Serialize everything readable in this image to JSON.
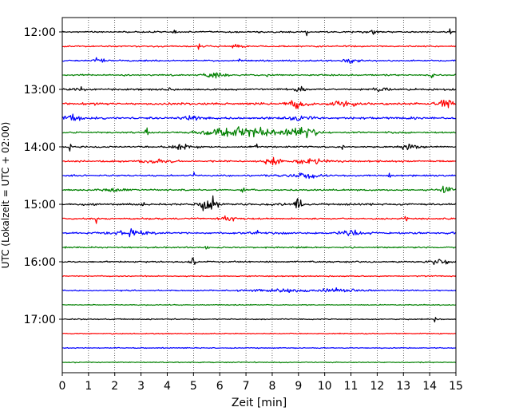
{
  "chart_data": {
    "type": "line",
    "subtype": "helicorder",
    "title": "",
    "xlabel": "Zeit  [min]",
    "ylabel": "UTC (Lokalzeit = UTC + 02:00)",
    "xlim": [
      0,
      15
    ],
    "x_ticks": [
      0,
      1,
      2,
      3,
      4,
      5,
      6,
      7,
      8,
      9,
      10,
      11,
      12,
      13,
      14,
      15
    ],
    "x_tick_labels": [
      "0",
      "1",
      "2",
      "3",
      "4",
      "5",
      "6",
      "7",
      "8",
      "9",
      "10",
      "11",
      "12",
      "13",
      "14",
      "15"
    ],
    "y_tick_labels": [
      "12:00",
      "13:00",
      "14:00",
      "15:00",
      "16:00",
      "17:00"
    ],
    "start_time": "12:00",
    "row_minutes": 15,
    "grid": "vertical dotted",
    "trace_colors": [
      "#000000",
      "#ff0000",
      "#0000ff",
      "#008000"
    ],
    "rows": [
      {
        "start": "12:00",
        "color": "#000000",
        "noise": 0.9,
        "events": [
          {
            "t": 1.3,
            "a": 2.0,
            "w": 0.05
          },
          {
            "t": 4.3,
            "a": 4.5,
            "w": 0.05
          },
          {
            "t": 9.3,
            "a": 5.5,
            "w": 0.06
          },
          {
            "t": 11.7,
            "a": 2.5,
            "w": 0.3
          },
          {
            "t": 14.8,
            "a": 5.0,
            "w": 0.05
          }
        ]
      },
      {
        "start": "12:15",
        "color": "#ff0000",
        "noise": 0.9,
        "events": [
          {
            "t": 5.2,
            "a": 4.5,
            "w": 0.05
          },
          {
            "t": 6.6,
            "a": 2.5,
            "w": 0.3
          },
          {
            "t": 10.8,
            "a": 3.5,
            "w": 0.05
          }
        ]
      },
      {
        "start": "12:30",
        "color": "#0000ff",
        "noise": 0.9,
        "events": [
          {
            "t": 1.4,
            "a": 4.0,
            "w": 0.2
          },
          {
            "t": 6.8,
            "a": 4.5,
            "w": 0.05
          },
          {
            "t": 11.0,
            "a": 2.5,
            "w": 0.3
          }
        ]
      },
      {
        "start": "12:45",
        "color": "#008000",
        "noise": 0.9,
        "events": [
          {
            "t": 2.4,
            "a": 3.0,
            "w": 0.05
          },
          {
            "t": 5.8,
            "a": 3.5,
            "w": 0.4
          },
          {
            "t": 7.8,
            "a": 4.0,
            "w": 0.05
          },
          {
            "t": 14.1,
            "a": 3.5,
            "w": 0.05
          }
        ]
      },
      {
        "start": "13:00",
        "color": "#000000",
        "noise": 1.1,
        "events": [
          {
            "t": 0.7,
            "a": 3.0,
            "w": 0.2
          },
          {
            "t": 4.1,
            "a": 5.0,
            "w": 0.05
          },
          {
            "t": 9.0,
            "a": 2.5,
            "w": 0.3
          },
          {
            "t": 12.2,
            "a": 2.5,
            "w": 0.3
          }
        ]
      },
      {
        "start": "13:15",
        "color": "#ff0000",
        "noise": 1.3,
        "events": [
          {
            "t": 1.2,
            "a": 4.0,
            "w": 0.05
          },
          {
            "t": 8.9,
            "a": 6.5,
            "w": 0.35
          },
          {
            "t": 10.8,
            "a": 3.5,
            "w": 0.5
          },
          {
            "t": 14.6,
            "a": 6.0,
            "w": 0.3
          }
        ]
      },
      {
        "start": "13:30",
        "color": "#0000ff",
        "noise": 1.4,
        "events": [
          {
            "t": 0.4,
            "a": 4.0,
            "w": 0.3
          },
          {
            "t": 5.0,
            "a": 3.0,
            "w": 0.4
          },
          {
            "t": 9.0,
            "a": 3.0,
            "w": 0.4
          }
        ]
      },
      {
        "start": "13:45",
        "color": "#008000",
        "noise": 1.0,
        "events": [
          {
            "t": 3.2,
            "a": 5.5,
            "w": 0.08
          },
          {
            "t": 6.8,
            "a": 7.5,
            "w": 1.3
          },
          {
            "t": 9.2,
            "a": 8.0,
            "w": 0.55
          }
        ]
      },
      {
        "start": "14:00",
        "color": "#000000",
        "noise": 1.0,
        "events": [
          {
            "t": 0.3,
            "a": 5.5,
            "w": 0.06
          },
          {
            "t": 4.5,
            "a": 2.5,
            "w": 0.5
          },
          {
            "t": 7.4,
            "a": 5.0,
            "w": 0.05
          },
          {
            "t": 10.7,
            "a": 5.0,
            "w": 0.05
          },
          {
            "t": 13.2,
            "a": 3.0,
            "w": 0.3
          }
        ]
      },
      {
        "start": "14:15",
        "color": "#ff0000",
        "noise": 1.1,
        "events": [
          {
            "t": 3.6,
            "a": 3.0,
            "w": 0.5
          },
          {
            "t": 8.0,
            "a": 8.5,
            "w": 0.25
          },
          {
            "t": 9.5,
            "a": 3.5,
            "w": 0.6
          },
          {
            "t": 12.0,
            "a": 4.0,
            "w": 0.05
          }
        ]
      },
      {
        "start": "14:30",
        "color": "#0000ff",
        "noise": 1.0,
        "events": [
          {
            "t": 5.0,
            "a": 5.0,
            "w": 0.06
          },
          {
            "t": 9.3,
            "a": 3.0,
            "w": 0.6
          },
          {
            "t": 12.5,
            "a": 4.5,
            "w": 0.06
          }
        ]
      },
      {
        "start": "14:45",
        "color": "#008000",
        "noise": 1.0,
        "events": [
          {
            "t": 2.0,
            "a": 2.5,
            "w": 0.5
          },
          {
            "t": 6.9,
            "a": 5.5,
            "w": 0.05
          },
          {
            "t": 14.6,
            "a": 4.0,
            "w": 0.25
          }
        ]
      },
      {
        "start": "15:00",
        "color": "#000000",
        "noise": 1.3,
        "events": [
          {
            "t": 5.6,
            "a": 10.0,
            "w": 0.35
          },
          {
            "t": 9.0,
            "a": 8.5,
            "w": 0.15
          },
          {
            "t": 3.1,
            "a": 3.0,
            "w": 0.05
          }
        ]
      },
      {
        "start": "15:15",
        "color": "#ff0000",
        "noise": 1.0,
        "events": [
          {
            "t": 1.3,
            "a": 5.0,
            "w": 0.05
          },
          {
            "t": 6.3,
            "a": 3.0,
            "w": 0.3
          },
          {
            "t": 13.1,
            "a": 5.0,
            "w": 0.05
          }
        ]
      },
      {
        "start": "15:30",
        "color": "#0000ff",
        "noise": 1.2,
        "events": [
          {
            "t": 2.6,
            "a": 3.5,
            "w": 0.6
          },
          {
            "t": 7.4,
            "a": 5.5,
            "w": 0.05
          },
          {
            "t": 11.0,
            "a": 3.0,
            "w": 0.4
          }
        ]
      },
      {
        "start": "15:45",
        "color": "#008000",
        "noise": 0.9,
        "events": [
          {
            "t": 5.5,
            "a": 6.0,
            "w": 0.05
          }
        ]
      },
      {
        "start": "16:00",
        "color": "#000000",
        "noise": 1.0,
        "events": [
          {
            "t": 5.0,
            "a": 5.0,
            "w": 0.12
          },
          {
            "t": 14.4,
            "a": 3.5,
            "w": 0.4
          }
        ]
      },
      {
        "start": "16:15",
        "color": "#ff0000",
        "noise": 0.7,
        "events": []
      },
      {
        "start": "16:30",
        "color": "#0000ff",
        "noise": 0.8,
        "events": [
          {
            "t": 8.3,
            "a": 2.5,
            "w": 1.0
          },
          {
            "t": 10.5,
            "a": 2.0,
            "w": 0.8
          }
        ]
      },
      {
        "start": "16:45",
        "color": "#008000",
        "noise": 0.6,
        "events": []
      },
      {
        "start": "17:00",
        "color": "#000000",
        "noise": 0.7,
        "events": [
          {
            "t": 14.2,
            "a": 3.5,
            "w": 0.05
          }
        ]
      },
      {
        "start": "17:15",
        "color": "#ff0000",
        "noise": 0.6,
        "events": []
      },
      {
        "start": "17:30",
        "color": "#0000ff",
        "noise": 0.6,
        "events": []
      },
      {
        "start": "17:45",
        "color": "#008000",
        "noise": 0.6,
        "events": []
      }
    ]
  }
}
